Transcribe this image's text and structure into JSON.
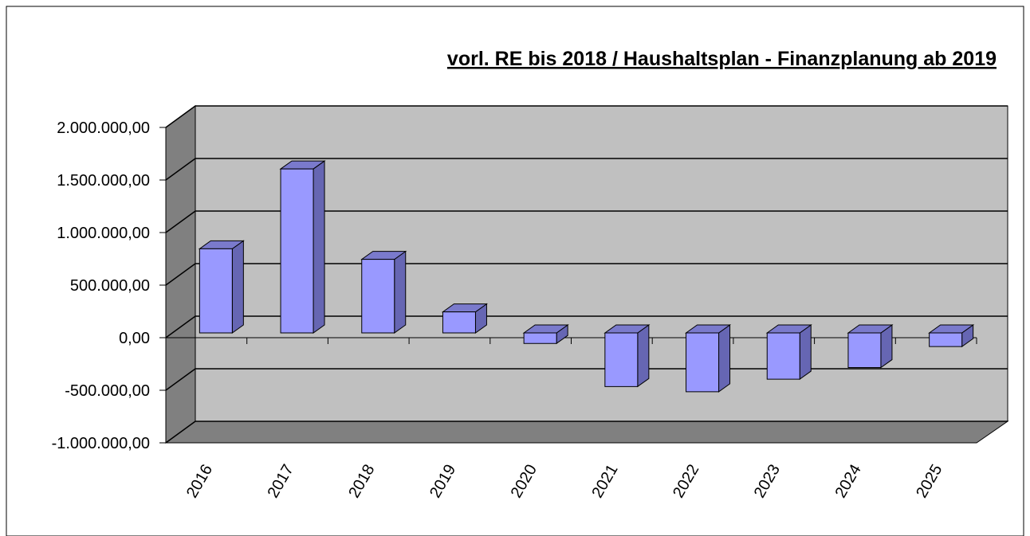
{
  "chart_data": {
    "type": "bar3d",
    "title": "vorl. RE bis 2018 / Haushaltsplan - Finanzplanung ab 2019",
    "categories": [
      "2016",
      "2017",
      "2018",
      "2019",
      "2020",
      "2021",
      "2022",
      "2023",
      "2024",
      "2025"
    ],
    "values": [
      800000,
      1560000,
      700000,
      200000,
      -100000,
      -510000,
      -560000,
      -440000,
      -330000,
      -130000
    ],
    "color": "#9999ff",
    "ylim": [
      -1000000,
      2000000
    ],
    "yticks": [
      {
        "value": -1000000,
        "label": "-1.000.000,00"
      },
      {
        "value": -500000,
        "label": "-500.000,00"
      },
      {
        "value": 0,
        "label": "0,00"
      },
      {
        "value": 500000,
        "label": "500.000,00"
      },
      {
        "value": 1000000,
        "label": "1.000.000,00"
      },
      {
        "value": 1500000,
        "label": "1.500.000,00"
      },
      {
        "value": 2000000,
        "label": "2.000.000,00"
      }
    ],
    "grid": true
  }
}
